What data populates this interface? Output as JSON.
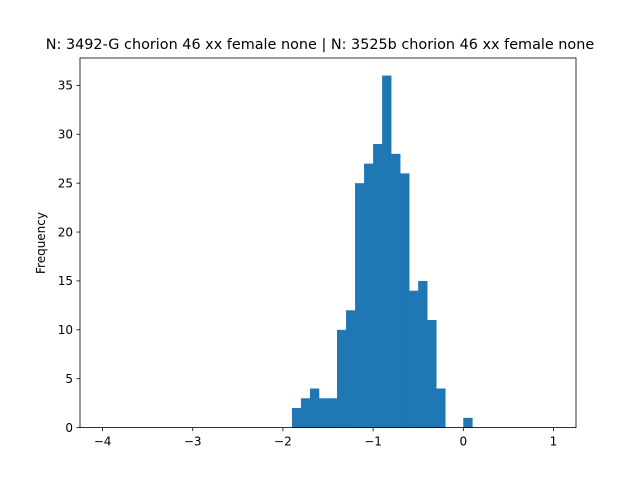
{
  "chart_data": {
    "type": "bar",
    "title": "N: 3492-G chorion 46 xx female none | N: 3525b chorion 46 xx female none",
    "xlabel": "",
    "ylabel": "Frequency",
    "xlim": [
      -4.25,
      1.25
    ],
    "ylim": [
      0,
      37.8
    ],
    "xticks": [
      -4,
      -3,
      -2,
      -1,
      0,
      1
    ],
    "xtick_labels": [
      "−4",
      "−3",
      "−2",
      "−1",
      "0",
      "1"
    ],
    "yticks": [
      0,
      5,
      10,
      15,
      20,
      25,
      30,
      35
    ],
    "ytick_labels": [
      "0",
      "5",
      "10",
      "15",
      "20",
      "25",
      "30",
      "35"
    ],
    "bin_width": 0.1,
    "bins": [
      {
        "x0": -1.9,
        "count": 2
      },
      {
        "x0": -1.8,
        "count": 3
      },
      {
        "x0": -1.7,
        "count": 4
      },
      {
        "x0": -1.6,
        "count": 3
      },
      {
        "x0": -1.5,
        "count": 3
      },
      {
        "x0": -1.4,
        "count": 10
      },
      {
        "x0": -1.3,
        "count": 12
      },
      {
        "x0": -1.2,
        "count": 25
      },
      {
        "x0": -1.1,
        "count": 27
      },
      {
        "x0": -1.0,
        "count": 29
      },
      {
        "x0": -0.9,
        "count": 36
      },
      {
        "x0": -0.8,
        "count": 28
      },
      {
        "x0": -0.7,
        "count": 26
      },
      {
        "x0": -0.6,
        "count": 14
      },
      {
        "x0": -0.5,
        "count": 15
      },
      {
        "x0": -0.4,
        "count": 11
      },
      {
        "x0": -0.3,
        "count": 4
      },
      {
        "x0": -0.2,
        "count": 0
      },
      {
        "x0": -0.1,
        "count": 0
      },
      {
        "x0": 0.0,
        "count": 1
      }
    ],
    "bar_color": "#1f77b4",
    "grid": false,
    "legend": "none"
  }
}
